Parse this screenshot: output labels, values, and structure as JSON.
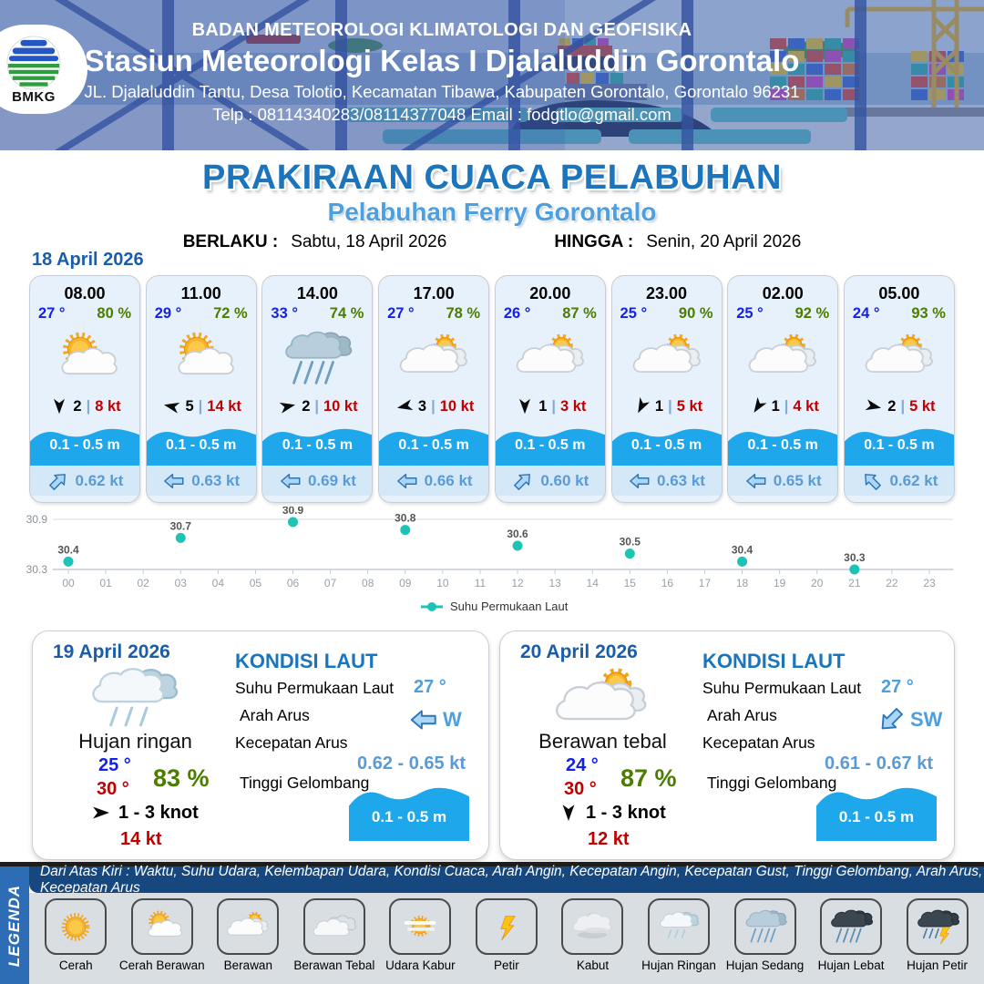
{
  "header": {
    "org": "BADAN METEOROLOGI KLIMATOLOGI DAN GEOFISIKA",
    "station": "Stasiun Meteorologi Kelas I Djalaluddin Gorontalo",
    "address": "JL. Djalaluddin Tantu, Desa Tolotio, Kecamatan Tibawa, Kabupaten Gorontalo, Gorontalo 96231",
    "contact": "Telp : 08114340283/08114377048 Email : fodgtlo@gmail.com",
    "logo_text": "BMKG"
  },
  "title": {
    "main": "PRAKIRAAN CUACA PELABUHAN",
    "subtitle": "Pelabuhan Ferry Gorontalo",
    "berlaku_label": "BERLAKU :",
    "berlaku_value": "Sabtu, 18 April 2026",
    "hingga_label": "HINGGA :",
    "hingga_value": "Senin, 20 April 2026"
  },
  "forecast_date": "18 April 2026",
  "hourly": [
    {
      "time": "08.00",
      "temp": "27 °",
      "humidity": "80 %",
      "icon": "cerah-berawan",
      "wind_dir_deg": 180,
      "wind_speed": "2",
      "gust": "8 kt",
      "wave": "0.1 - 0.5 m",
      "current_dir_deg": 45,
      "current": "0.62 kt"
    },
    {
      "time": "11.00",
      "temp": "29 °",
      "humidity": "72 %",
      "icon": "cerah-berawan",
      "wind_dir_deg": 282,
      "wind_speed": "5",
      "gust": "14 kt",
      "wave": "0.1 - 0.5 m",
      "current_dir_deg": 270,
      "current": "0.63 kt"
    },
    {
      "time": "14.00",
      "temp": "33 °",
      "humidity": "74 %",
      "icon": "hujan-sedang",
      "wind_dir_deg": 78,
      "wind_speed": "2",
      "gust": "10 kt",
      "wave": "0.1 - 0.5 m",
      "current_dir_deg": 270,
      "current": "0.69 kt"
    },
    {
      "time": "17.00",
      "temp": "27 °",
      "humidity": "78 %",
      "icon": "berawan",
      "wind_dir_deg": 258,
      "wind_speed": "3",
      "gust": "10 kt",
      "wave": "0.1 - 0.5 m",
      "current_dir_deg": 270,
      "current": "0.66 kt"
    },
    {
      "time": "20.00",
      "temp": "26 °",
      "humidity": "87 %",
      "icon": "berawan",
      "wind_dir_deg": 180,
      "wind_speed": "1",
      "gust": "3 kt",
      "wave": "0.1 - 0.5 m",
      "current_dir_deg": 45,
      "current": "0.60 kt"
    },
    {
      "time": "23.00",
      "temp": "25 °",
      "humidity": "90 %",
      "icon": "berawan",
      "wind_dir_deg": 207,
      "wind_speed": "1",
      "gust": "5 kt",
      "wave": "0.1 - 0.5 m",
      "current_dir_deg": 270,
      "current": "0.63 kt"
    },
    {
      "time": "02.00",
      "temp": "25 °",
      "humidity": "92 %",
      "icon": "berawan",
      "wind_dir_deg": 213,
      "wind_speed": "1",
      "gust": "4 kt",
      "wave": "0.1 - 0.5 m",
      "current_dir_deg": 270,
      "current": "0.65 kt"
    },
    {
      "time": "05.00",
      "temp": "24 °",
      "humidity": "93 %",
      "icon": "berawan",
      "wind_dir_deg": 102,
      "wind_speed": "2",
      "gust": "5 kt",
      "wave": "0.1 - 0.5 m",
      "current_dir_deg": 315,
      "current": "0.62 kt"
    }
  ],
  "chart_data": {
    "type": "scatter",
    "series": [
      {
        "name": "Suhu Permukaan Laut",
        "x": [
          0,
          3,
          6,
          9,
          12,
          15,
          18,
          21
        ],
        "values": [
          30.4,
          30.7,
          30.9,
          30.8,
          30.6,
          30.5,
          30.4,
          30.3
        ]
      }
    ],
    "x_ticks": [
      "00",
      "01",
      "02",
      "03",
      "04",
      "05",
      "06",
      "07",
      "08",
      "09",
      "10",
      "11",
      "12",
      "13",
      "14",
      "15",
      "16",
      "17",
      "18",
      "19",
      "20",
      "21",
      "22",
      "23"
    ],
    "y_ticks": [
      30.3,
      30.9
    ],
    "ylim": [
      30.3,
      30.9
    ],
    "grid": "top-line-only",
    "legend_position": "bottom",
    "marker_color": "#1BC4B4"
  },
  "sea_labels": {
    "title": "KONDISI LAUT",
    "sst": "Suhu Permukaan Laut",
    "dir": "Arah Arus",
    "speed": "Kecepatan Arus",
    "wave": "Tinggi Gelombang"
  },
  "daily": [
    {
      "date": "19 April 2026",
      "icon": "hujan-ringan",
      "condition": "Hujan ringan",
      "temp_min": "25 °",
      "temp_max": "30 °",
      "humidity": "83 %",
      "wind_dir_deg": 90,
      "wind_range": "1  - 3 knot",
      "gust": "14 kt",
      "sea": {
        "sst": "27 °",
        "current_dir": "W",
        "current_dir_deg": 270,
        "current_speed": "0.62  - 0.65 kt",
        "wave": "0.1 - 0.5 m"
      }
    },
    {
      "date": "20 April 2026",
      "icon": "berawan",
      "condition": "Berawan tebal",
      "temp_min": "24 °",
      "temp_max": "30 °",
      "humidity": "87 %",
      "wind_dir_deg": 180,
      "wind_range": "1  - 3 knot",
      "gust": "12 kt",
      "sea": {
        "sst": "27 °",
        "current_dir": "SW",
        "current_dir_deg": 225,
        "current_speed": "0.61 - 0.67 kt",
        "wave": "0.1 - 0.5 m"
      }
    }
  ],
  "legend": {
    "strip_label": "LEGENDA",
    "description": "Dari Atas Kiri : Waktu, Suhu Udara, Kelembapan Udara, Kondisi Cuaca, Arah Angin, Kecepatan Angin, Kecepatan Gust, Tinggi Gelombang, Arah Arus, Kecepatan Arus",
    "items": [
      {
        "label": "Cerah",
        "icon": "cerah"
      },
      {
        "label": "Cerah Berawan",
        "icon": "cerah-berawan"
      },
      {
        "label": "Berawan",
        "icon": "berawan"
      },
      {
        "label": "Berawan Tebal",
        "icon": "berawan-tebal"
      },
      {
        "label": "Udara Kabur",
        "icon": "udara-kabur"
      },
      {
        "label": "Petir",
        "icon": "petir"
      },
      {
        "label": "Kabut",
        "icon": "kabut"
      },
      {
        "label": "Hujan Ringan",
        "icon": "hujan-ringan"
      },
      {
        "label": "Hujan Sedang",
        "icon": "hujan-sedang"
      },
      {
        "label": "Hujan Lebat",
        "icon": "hujan-lebat"
      },
      {
        "label": "Hujan Petir",
        "icon": "hujan-petir"
      }
    ]
  },
  "colors": {
    "accent_blue": "#1C75BC",
    "subtitle_blue": "#4E9FE0",
    "date_blue": "#1A5DA8",
    "temp_blue": "#1322E6",
    "humidity_green": "#4C7C00",
    "gust_red": "#C00000",
    "wave_cyan": "#1FA7EC",
    "current_text_blue": "#5B9BD5",
    "chart_teal": "#1BC4B4",
    "legend_bar_navy": "#16477F",
    "legenda_strip_blue": "#2D6DB5",
    "card_bg": "#E7F1FB"
  }
}
